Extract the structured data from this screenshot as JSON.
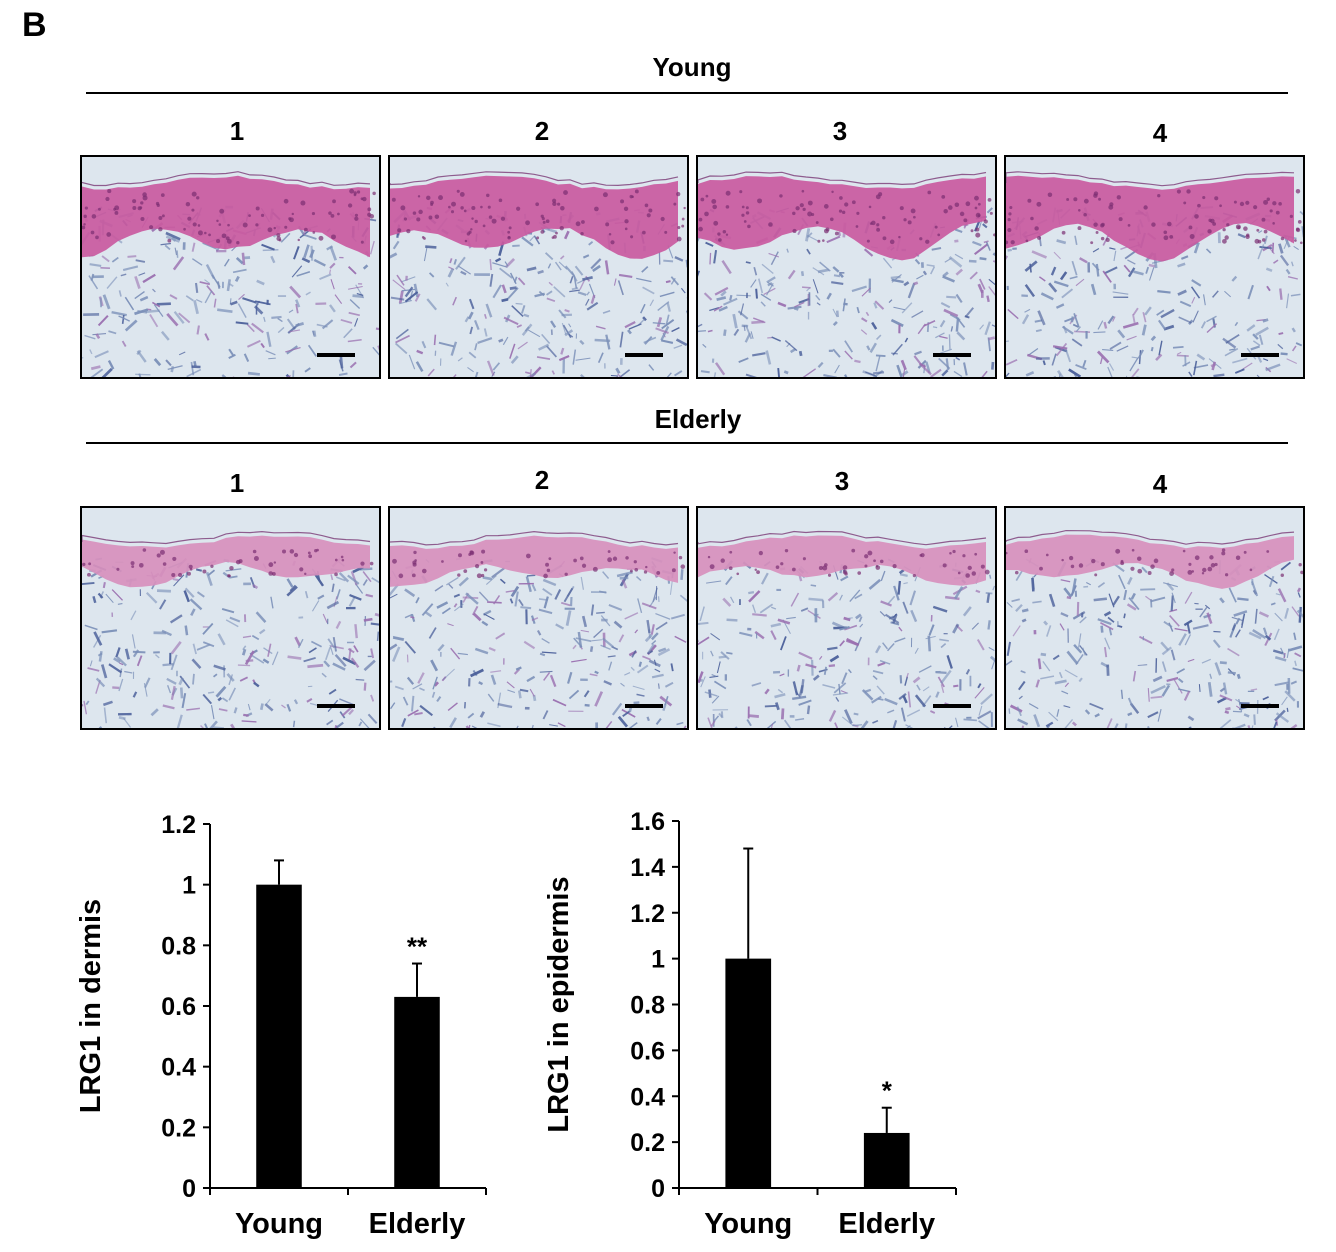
{
  "panel_label": "B",
  "young": {
    "title": "Young",
    "samples": [
      "1",
      "2",
      "3",
      "4"
    ]
  },
  "elderly": {
    "title": "Elderly",
    "samples": [
      "1",
      "2",
      "3",
      "4"
    ]
  },
  "colors": {
    "epidermis_young": "#c95aa0",
    "epidermis_elderly": "#d790bd",
    "dermis": "#dde6ee",
    "fiber": "#4a5f9a",
    "bar": "#000000"
  },
  "chart_data": [
    {
      "type": "bar",
      "categories": [
        "Young",
        "Elderly"
      ],
      "values": [
        1.0,
        0.63
      ],
      "errors": [
        0.08,
        0.11
      ],
      "significance": [
        "",
        "**"
      ],
      "ylabel": "LRG1 in dermis",
      "ylim": [
        0,
        1.2
      ],
      "yticks": [
        0,
        0.2,
        0.4,
        0.6,
        0.8,
        1,
        1.2
      ],
      "ytick_labels": [
        "0",
        "0.2",
        "0.4",
        "0.6",
        "0.8",
        "1",
        "1.2"
      ]
    },
    {
      "type": "bar",
      "categories": [
        "Young",
        "Elderly"
      ],
      "values": [
        1.0,
        0.24
      ],
      "errors": [
        0.48,
        0.11
      ],
      "significance": [
        "",
        "*"
      ],
      "ylabel": "LRG1 in epidermis",
      "ylim": [
        0,
        1.6
      ],
      "yticks": [
        0,
        0.2,
        0.4,
        0.6,
        0.8,
        1,
        1.2,
        1.4,
        1.6
      ],
      "ytick_labels": [
        "0",
        "0.2",
        "0.4",
        "0.6",
        "0.8",
        "1",
        "1.2",
        "1.4",
        "1.6"
      ]
    }
  ]
}
